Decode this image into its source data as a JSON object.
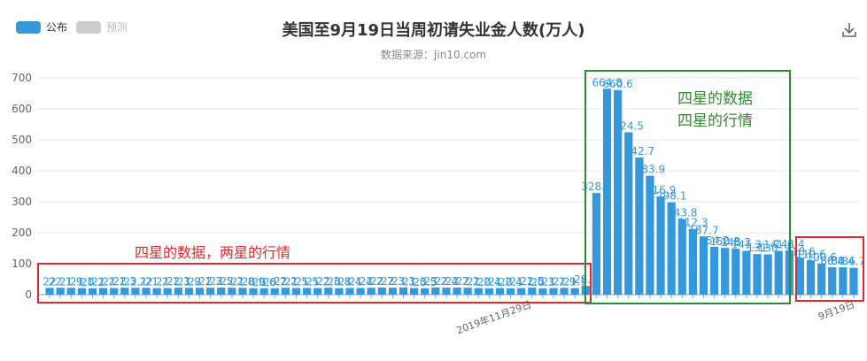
{
  "legend": {
    "items": [
      {
        "label": "公布",
        "color": "#3498db",
        "active": true
      },
      {
        "label": "预测",
        "color": "#cccccc",
        "active": false
      }
    ]
  },
  "title": "美国至9月19日当周初请失业金人数(万人)",
  "subtitle": "数据来源：Jin10.com",
  "toolbar": {
    "download_icon": "download-icon"
  },
  "annotations": {
    "red_box_left": {
      "text": "四星的数据，两星的行情",
      "color": "#e0282e"
    },
    "green_box": {
      "line1": "四星的数据",
      "line2": "四星的行情",
      "color": "#2e8b2e"
    },
    "red_box_right": {
      "color": "#e0282e"
    }
  },
  "chart_data": {
    "type": "bar",
    "ylim": [
      0,
      700
    ],
    "yticks": [
      0,
      100,
      200,
      300,
      400,
      500,
      600,
      700
    ],
    "grid": true,
    "bar_color": "#3498db",
    "label_color": "#3498db",
    "xtick_visible_labels": [
      "2019年11月29日",
      "9月19日"
    ],
    "values": [
      22,
      22.1,
      21.9,
      21.1,
      20.2,
      21.2,
      21.1,
      22.3,
      22.1,
      22,
      21.2,
      21.1,
      22.3,
      21.9,
      22.1,
      22.3,
      22.5,
      22.2,
      21.8,
      20.9,
      20.6,
      20.7,
      22.2,
      21.5,
      21.5,
      21.2,
      22.3,
      20.8,
      21.4,
      21.4,
      22.2,
      22.7,
      22.3,
      23.3,
      21.3,
      20.5,
      23.2,
      22.4,
      22.7,
      22.2,
      21.2,
      20.4,
      21.2,
      20.4,
      21.1,
      22.5,
      20.3,
      21.2,
      21.9,
      21.1,
      28.1,
      328.3,
      664.8,
      660.6,
      524.5,
      442.7,
      383.9,
      316.9,
      298.1,
      243.8,
      212.3,
      187.7,
      154.2,
      150.8,
      148.2,
      141.3,
      131,
      130,
      141.6,
      143.4,
      118.6,
      110.6,
      100.6,
      88.4,
      88.4,
      86.7
    ]
  }
}
